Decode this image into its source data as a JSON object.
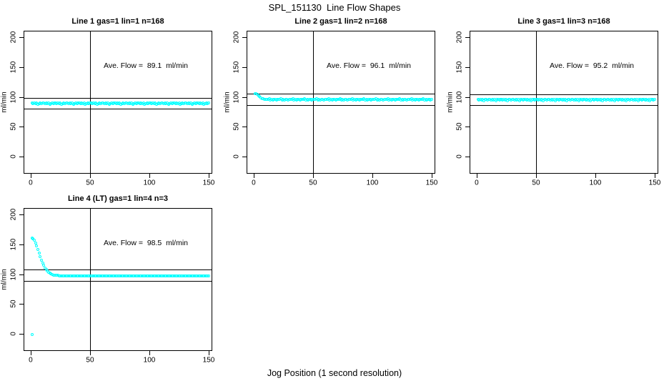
{
  "page": {
    "title": "SPL_151130  Line Flow Shapes",
    "xlabel": "Jog Position (1 second resolution)",
    "background": "#ffffff"
  },
  "chart_data": {
    "type": "scatter",
    "title": "SPL_151130  Line Flow Shapes",
    "xlabel": "Jog Position (1 second resolution)",
    "ylabel": "ml/min",
    "point_color": "#00FFFF",
    "line_color": "#000000",
    "x_ticks": [
      0,
      50,
      100,
      150
    ],
    "y_ticks": [
      0,
      50,
      100,
      150,
      200
    ],
    "xlim": [
      -6,
      153
    ],
    "ylim": [
      -29,
      211
    ],
    "grid": false,
    "vline_x": 50,
    "ref_line_rule": "horizontal lines at average flow +10% and -10%",
    "panels": [
      {
        "name": "line-1",
        "grid_pos": [
          0,
          0
        ],
        "title": "Line 1 gas=1 lin=1 n=168",
        "annotation": "Ave. Flow =  89.1  ml/min",
        "ave_flow": 89.1,
        "ref_lines": [
          98.0,
          80.2
        ],
        "x_start": 1,
        "y": [
          89.4,
          88.2,
          90.2,
          88.7,
          89.9,
          87.9,
          89.2,
          90,
          88.4,
          89.5,
          89.4,
          88.2,
          90.2,
          88.7,
          89.9,
          87.9,
          89.2,
          90,
          88.4,
          89.5,
          89.4,
          88.2,
          90.2,
          88.7,
          89.9,
          87.9,
          89.2,
          90,
          88.4,
          89.5,
          89.4,
          88.2,
          90.2,
          88.7,
          89.9,
          87.9,
          89.2,
          90,
          88.4,
          89.5,
          89.4,
          88.2,
          90.2,
          88.7,
          89.9,
          87.9,
          89.2,
          90,
          88.4,
          89.5,
          89.4,
          88.2,
          90.2,
          88.7,
          89.9,
          87.9,
          89.2,
          90,
          88.4,
          89.5,
          89.4,
          88.2,
          90.2,
          88.7,
          89.9,
          87.9,
          89.2,
          90,
          88.4,
          89.5,
          89.4,
          88.2,
          90.2,
          88.7,
          89.9,
          87.9,
          89.2,
          90,
          88.4,
          89.5,
          89.4,
          88.2,
          90.2,
          88.7,
          89.9,
          87.9,
          89.2,
          90,
          88.4,
          89.5,
          89.4,
          88.2,
          90.2,
          88.7,
          89.9,
          87.9,
          89.2,
          90,
          88.4,
          89.5,
          89.4,
          88.2,
          90.2,
          88.7,
          89.9,
          87.9,
          89.2,
          90,
          88.4,
          89.5,
          89.4,
          88.2,
          90.2,
          88.7,
          89.9,
          87.9,
          89.2,
          90,
          88.4,
          89.5,
          89.4,
          88.2,
          90.2,
          88.7,
          89.9,
          87.9,
          89.2,
          90,
          88.4,
          89.5,
          89.4,
          88.2,
          90.2,
          88.7,
          89.9,
          87.9,
          89.2,
          90,
          88.4,
          89.5,
          89.4,
          88.2,
          90.2,
          88.7,
          89.9,
          87.9,
          89.2,
          90,
          88.4,
          89.5
        ],
        "extra_points": []
      },
      {
        "name": "line-2",
        "grid_pos": [
          0,
          1
        ],
        "title": "Line 2 gas=1 lin=2 n=168",
        "annotation": "Ave. Flow =  96.1  ml/min",
        "ave_flow": 96.1,
        "ref_lines": [
          105.7,
          86.5
        ],
        "x_start": 1,
        "y": [
          105.8,
          105.2,
          104.1,
          102.3,
          100.2,
          98.4,
          97.2,
          96.5,
          96.2,
          96,
          96.3,
          95.4,
          96.6,
          95.2,
          96.1,
          95,
          96.4,
          95.6,
          95.1,
          96.2,
          96.3,
          95.4,
          96.6,
          95.2,
          96.1,
          95,
          96.4,
          95.6,
          95.1,
          96.2,
          96.3,
          95.4,
          96.6,
          95.2,
          96.1,
          95,
          96.4,
          95.6,
          95.1,
          96.2,
          96.3,
          95.4,
          96.6,
          95.2,
          96.1,
          95,
          96.4,
          95.6,
          95.1,
          96.2,
          96.3,
          95.4,
          96.6,
          95.2,
          96.1,
          95,
          96.4,
          95.6,
          95.1,
          96.2,
          96.3,
          95.4,
          96.6,
          95.2,
          96.1,
          95,
          96.4,
          95.6,
          95.1,
          96.2,
          96.3,
          95.4,
          96.6,
          95.2,
          96.1,
          95,
          96.4,
          95.6,
          95.1,
          96.2,
          96.3,
          95.4,
          96.6,
          95.2,
          96.1,
          95,
          96.4,
          95.6,
          95.1,
          96.2,
          96.3,
          95.4,
          96.6,
          95.2,
          96.1,
          95,
          96.4,
          95.6,
          95.1,
          96.2,
          96.3,
          95.4,
          96.6,
          95.2,
          96.1,
          95,
          96.4,
          95.6,
          95.1,
          96.2,
          96.3,
          95.4,
          96.6,
          95.2,
          96.1,
          95,
          96.4,
          95.6,
          95.1,
          96.2,
          96.3,
          95.4,
          96.6,
          95.2,
          96.1,
          95,
          96.4,
          95.6,
          95.1,
          96.2,
          96.3,
          95.4,
          96.6,
          95.2,
          96.1,
          95,
          96.4,
          95.6,
          95.1,
          96.2,
          96.3,
          95.4,
          96.6,
          95.2,
          96.1,
          95,
          96.4,
          95.6,
          95.1,
          96.2
        ],
        "extra_points": []
      },
      {
        "name": "line-3",
        "grid_pos": [
          0,
          2
        ],
        "title": "Line 3 gas=1 lin=3 n=168",
        "annotation": "Ave. Flow =  95.2  ml/min",
        "ave_flow": 95.2,
        "ref_lines": [
          104.7,
          85.7
        ],
        "x_start": 1,
        "y": [
          95.5,
          94.3,
          96.3,
          94.8,
          96,
          94,
          95.3,
          96.1,
          94.5,
          95.6,
          95.5,
          94.3,
          96.3,
          94.8,
          96,
          94,
          95.3,
          96.1,
          94.5,
          95.6,
          95.5,
          94.3,
          96.3,
          94.8,
          96,
          94,
          95.3,
          96.1,
          94.5,
          95.6,
          95.5,
          94.3,
          96.3,
          94.8,
          96,
          94,
          95.3,
          96.1,
          94.5,
          95.6,
          95.5,
          94.3,
          96.3,
          94.8,
          96,
          94,
          95.3,
          96.1,
          94.5,
          95.6,
          95.5,
          94.3,
          96.3,
          94.8,
          96,
          94,
          95.3,
          96.1,
          94.5,
          95.6,
          95.5,
          94.3,
          96.3,
          94.8,
          96,
          94,
          95.3,
          96.1,
          94.5,
          95.6,
          95.5,
          94.3,
          96.3,
          94.8,
          96,
          94,
          95.3,
          96.1,
          94.5,
          95.6,
          95.5,
          94.3,
          96.3,
          94.8,
          96,
          94,
          95.3,
          96.1,
          94.5,
          95.6,
          95.5,
          94.3,
          96.3,
          94.8,
          96,
          94,
          95.3,
          96.1,
          94.5,
          95.6,
          95.5,
          94.3,
          96.3,
          94.8,
          96,
          94,
          95.3,
          96.1,
          94.5,
          95.6,
          95.5,
          94.3,
          96.3,
          94.8,
          96,
          94,
          95.3,
          96.1,
          94.5,
          95.6,
          95.5,
          94.3,
          96.3,
          94.8,
          96,
          94,
          95.3,
          96.1,
          94.5,
          95.6,
          95.5,
          94.3,
          96.3,
          94.8,
          96,
          94,
          95.3,
          96.1,
          94.5,
          95.6,
          95.5,
          94.3,
          96.3,
          94.8,
          96,
          94,
          95.3,
          96.1,
          94.5,
          95.6
        ],
        "extra_points": []
      },
      {
        "name": "line-4-lt",
        "grid_pos": [
          1,
          0
        ],
        "title": "Line 4 (LT) gas=1 lin=4 n=3",
        "annotation": "Ave. Flow =  98.5  ml/min",
        "ave_flow": 98.5,
        "ref_lines": [
          108.4,
          88.7
        ],
        "x_start": 1,
        "y": [
          161,
          159.5,
          156.5,
          152,
          147,
          141.5,
          135.5,
          129.5,
          124,
          119,
          114.5,
          110.5,
          107.5,
          105,
          103,
          101.5,
          100.3,
          99.4,
          98.8,
          98.4,
          98.1,
          97.9,
          97.7,
          97.6,
          97.5,
          97.4,
          97.3,
          97.3,
          97.2,
          97.2,
          97.3,
          96.8,
          97.5,
          96.9,
          97.2,
          96.7,
          97.4,
          97,
          96.8,
          97.2,
          97.3,
          96.8,
          97.5,
          96.9,
          97.2,
          96.7,
          97.4,
          97,
          96.8,
          97.2,
          97.3,
          96.8,
          97.5,
          96.9,
          97.2,
          96.7,
          97.4,
          97,
          96.8,
          97.2,
          97.3,
          96.8,
          97.5,
          96.9,
          97.2,
          96.7,
          97.4,
          97,
          96.8,
          97.2,
          97.3,
          96.8,
          97.5,
          96.9,
          97.2,
          96.7,
          97.4,
          97,
          96.8,
          97.2,
          97.3,
          96.8,
          97.5,
          96.9,
          97.2,
          96.7,
          97.4,
          97,
          96.8,
          97.2,
          97.3,
          96.8,
          97.5,
          96.9,
          97.2,
          96.7,
          97.4,
          97,
          96.8,
          97.2,
          97.3,
          96.8,
          97.5,
          96.9,
          97.2,
          96.7,
          97.4,
          97,
          96.8,
          97.2,
          97.3,
          96.8,
          97.5,
          96.9,
          97.2,
          96.7,
          97.4,
          97,
          96.8,
          97.2,
          97.3,
          96.8,
          97.5,
          96.9,
          97.2,
          96.7,
          97.4,
          97,
          96.8,
          97.2,
          97.3,
          96.8,
          97.5,
          96.9,
          97.2,
          96.7,
          97.4,
          97,
          96.8,
          97.2,
          97.3,
          96.8,
          97.5,
          96.9,
          97.2,
          96.7,
          97.4,
          97,
          96.8,
          97.2
        ],
        "extra_points": [
          [
            1,
            -1
          ]
        ]
      }
    ]
  }
}
